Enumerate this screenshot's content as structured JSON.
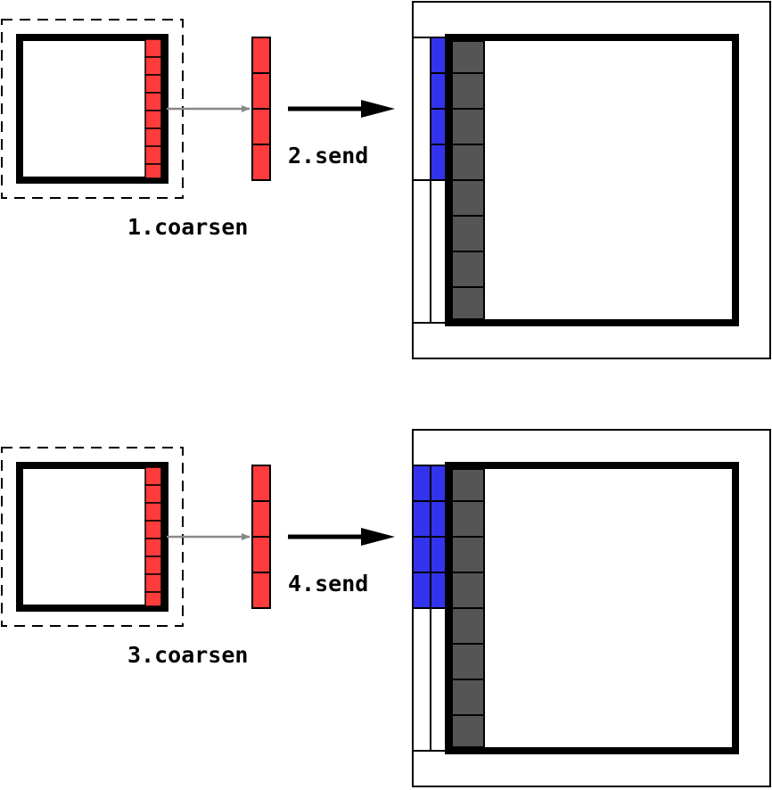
{
  "panels": [
    {
      "step_coarsen": "1.coarsen",
      "step_send": "2.send",
      "blue_columns": 1
    },
    {
      "step_coarsen": "3.coarsen",
      "step_send": "4.send",
      "blue_columns": 2
    }
  ],
  "colors": {
    "fine_cells": "#ff3b3b",
    "coarse_strip": "#ff3b3b",
    "ghost_cells": "#3333ee",
    "interior_boundary_cells": "#555555",
    "outline": "#000000",
    "small_arrow": "#888888"
  }
}
